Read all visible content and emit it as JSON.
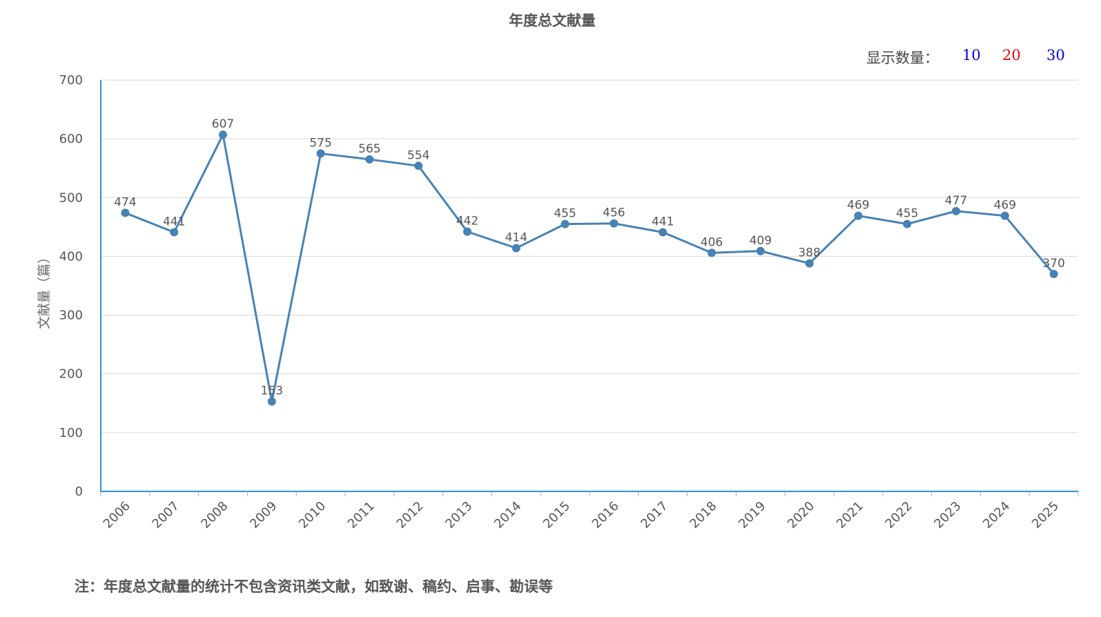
{
  "header": {
    "title": "年度总文献量"
  },
  "selector": {
    "label": "显示数量：",
    "options": [
      {
        "label": "10",
        "color": "#0000ee"
      },
      {
        "label": "20",
        "color": "#ee0000"
      },
      {
        "label": "30",
        "color": "#0000ee"
      }
    ]
  },
  "chart_data": {
    "type": "line",
    "title": "年度总文献量",
    "xlabel": "",
    "ylabel": "文献量（篇）",
    "categories": [
      "2006",
      "2007",
      "2008",
      "2009",
      "2010",
      "2011",
      "2012",
      "2013",
      "2014",
      "2015",
      "2016",
      "2017",
      "2018",
      "2019",
      "2020",
      "2021",
      "2022",
      "2023",
      "2024",
      "2025"
    ],
    "series": [
      {
        "values": [
          474,
          441,
          607,
          153,
          575,
          565,
          554,
          442,
          414,
          455,
          456,
          441,
          406,
          409,
          388,
          469,
          455,
          477,
          469,
          370
        ],
        "color": "#4682b4"
      }
    ],
    "ylim": [
      0,
      700
    ],
    "yticks": [
      0,
      100,
      200,
      300,
      400,
      500,
      600,
      700
    ],
    "grid": true,
    "data_labels": true,
    "legend": "none"
  },
  "footnote": "注：年度总文献量的统计不包含资讯类文献，如致谢、稿约、启事、勘误等"
}
